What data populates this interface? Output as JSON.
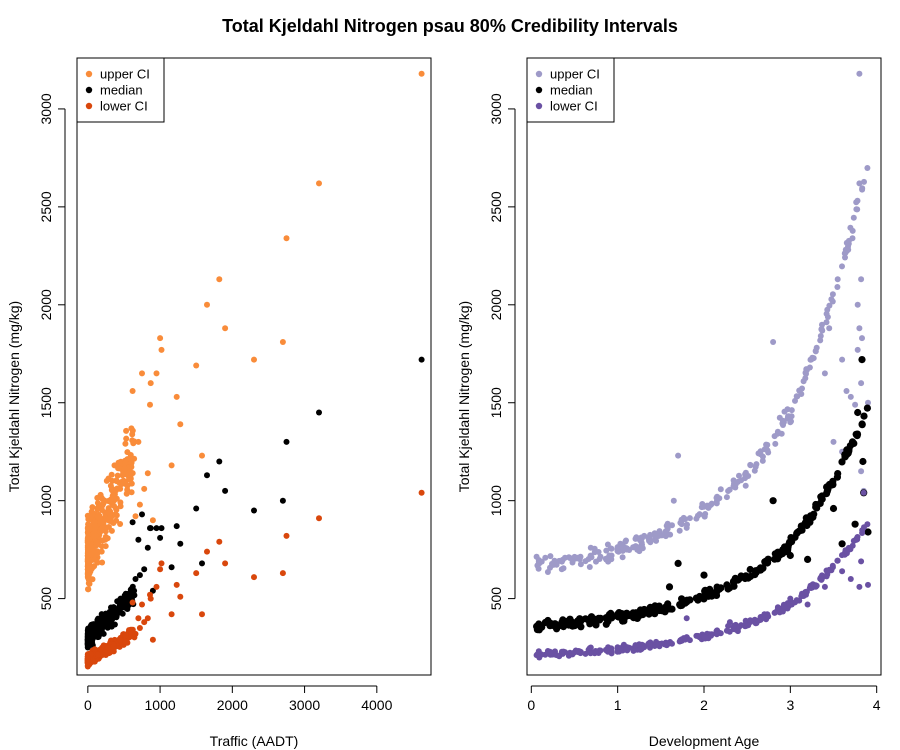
{
  "title": "Total Kjeldahl Nitrogen psau 80% Credibility Intervals",
  "chart_data": [
    {
      "type": "scatter",
      "xlabel": "Traffic (AADT)",
      "ylabel": "Total Kjeldahl Nitrogen (mg/kg)",
      "xlim": [
        -150,
        4750
      ],
      "ylim": [
        110,
        3260
      ],
      "xticks": [
        "0",
        "1000",
        "2000",
        "3000",
        "4000"
      ],
      "yticks": [
        "500",
        "1000",
        "1500",
        "2000",
        "2500",
        "3000"
      ],
      "legend_position": "top-left",
      "grid": false,
      "series": [
        {
          "name": "upper CI",
          "color": "#f98c3a",
          "points": [
            [
              4620,
              3180
            ],
            [
              3200,
              2620
            ],
            [
              2750,
              2340
            ],
            [
              1820,
              2130
            ],
            [
              1650,
              2000
            ],
            [
              1900,
              1880
            ],
            [
              2700,
              1810
            ],
            [
              1000,
              1830
            ],
            [
              1020,
              1770
            ],
            [
              2300,
              1720
            ],
            [
              1500,
              1690
            ],
            [
              950,
              1650
            ],
            [
              750,
              1650
            ],
            [
              870,
              1600
            ],
            [
              1230,
              1530
            ],
            [
              1280,
              1390
            ],
            [
              1580,
              1230
            ],
            [
              1160,
              1180
            ],
            [
              860,
              1490
            ],
            [
              620,
              1560
            ],
            [
              700,
              1300
            ],
            [
              830,
              1140
            ],
            [
              780,
              1060
            ],
            [
              720,
              980
            ],
            [
              660,
              920
            ],
            [
              900,
              900
            ]
          ]
        },
        {
          "name": "median",
          "color": "#000000",
          "points": [
            [
              4620,
              1720
            ],
            [
              3200,
              1450
            ],
            [
              2750,
              1300
            ],
            [
              1820,
              1200
            ],
            [
              1650,
              1130
            ],
            [
              1900,
              1050
            ],
            [
              2700,
              1000
            ],
            [
              2300,
              950
            ],
            [
              1500,
              960
            ],
            [
              1230,
              870
            ],
            [
              1280,
              780
            ],
            [
              1020,
              860
            ],
            [
              950,
              860
            ],
            [
              870,
              860
            ],
            [
              860,
              860
            ],
            [
              1160,
              660
            ],
            [
              1580,
              680
            ],
            [
              1000,
              810
            ],
            [
              750,
              930
            ],
            [
              620,
              890
            ],
            [
              700,
              800
            ],
            [
              830,
              760
            ],
            [
              780,
              650
            ],
            [
              720,
              620
            ],
            [
              660,
              600
            ],
            [
              900,
              540
            ]
          ]
        },
        {
          "name": "lower CI",
          "color": "#d9470c",
          "points": [
            [
              4620,
              1040
            ],
            [
              3200,
              910
            ],
            [
              2750,
              820
            ],
            [
              1820,
              790
            ],
            [
              1650,
              740
            ],
            [
              1900,
              680
            ],
            [
              2700,
              630
            ],
            [
              2300,
              610
            ],
            [
              1500,
              630
            ],
            [
              1230,
              570
            ],
            [
              1280,
              510
            ],
            [
              1020,
              680
            ],
            [
              1000,
              650
            ],
            [
              950,
              560
            ],
            [
              870,
              500
            ],
            [
              1160,
              420
            ],
            [
              1580,
              420
            ],
            [
              860,
              520
            ],
            [
              750,
              470
            ],
            [
              620,
              480
            ],
            [
              700,
              400
            ],
            [
              830,
              400
            ],
            [
              780,
              380
            ],
            [
              720,
              350
            ],
            [
              660,
              320
            ],
            [
              900,
              290
            ]
          ]
        }
      ]
    },
    {
      "type": "scatter",
      "xlabel": "Development Age",
      "ylabel": "Total Kjeldahl Nitrogen (mg/kg)",
      "xlim": [
        -0.05,
        4.05
      ],
      "ylim": [
        110,
        3260
      ],
      "xticks": [
        "0",
        "1",
        "2",
        "3",
        "4"
      ],
      "yticks": [
        "500",
        "1000",
        "1500",
        "2000",
        "2500",
        "3000"
      ],
      "legend_position": "top-left",
      "grid": false,
      "series": [
        {
          "name": "upper CI",
          "color": "#9e9ac8",
          "points": [
            [
              3.8,
              3180
            ],
            [
              3.8,
              2620
            ],
            [
              3.72,
              2340
            ],
            [
              3.82,
              2130
            ],
            [
              3.78,
              2000
            ],
            [
              3.8,
              1880
            ],
            [
              3.45,
              1880
            ],
            [
              2.8,
              1810
            ],
            [
              3.83,
              1830
            ],
            [
              3.6,
              1720
            ],
            [
              3.78,
              1770
            ],
            [
              3.4,
              1650
            ],
            [
              3.82,
              1600
            ],
            [
              3.65,
              1560
            ],
            [
              3.7,
              1530
            ],
            [
              3.75,
              1490
            ],
            [
              3.9,
              1500
            ],
            [
              3.0,
              1400
            ],
            [
              3.5,
              1300
            ],
            [
              3.6,
              1250
            ],
            [
              1.7,
              1230
            ],
            [
              1.65,
              1000
            ],
            [
              3.85,
              1050
            ],
            [
              3.82,
              1150
            ]
          ]
        },
        {
          "name": "median",
          "color": "#000000",
          "points": [
            [
              3.83,
              1720
            ],
            [
              3.78,
              1450
            ],
            [
              3.72,
              1300
            ],
            [
              3.84,
              1200
            ],
            [
              3.85,
              1040
            ],
            [
              3.5,
              960
            ],
            [
              2.8,
              1000
            ],
            [
              3.9,
              840
            ],
            [
              3.6,
              780
            ],
            [
              3.2,
              700
            ],
            [
              1.7,
              680
            ],
            [
              1.6,
              560
            ],
            [
              2.0,
              620
            ],
            [
              3.75,
              880
            ],
            [
              3.0,
              720
            ]
          ]
        },
        {
          "name": "lower CI",
          "color": "#6a51a3",
          "points": [
            [
              3.85,
              1040
            ],
            [
              3.9,
              570
            ],
            [
              3.82,
              690
            ],
            [
              3.6,
              640
            ],
            [
              3.7,
              600
            ],
            [
              3.4,
              560
            ],
            [
              3.0,
              500
            ],
            [
              2.7,
              420
            ],
            [
              1.8,
              400
            ],
            [
              2.3,
              380
            ],
            [
              3.2,
              470
            ],
            [
              3.8,
              560
            ]
          ]
        }
      ]
    }
  ]
}
